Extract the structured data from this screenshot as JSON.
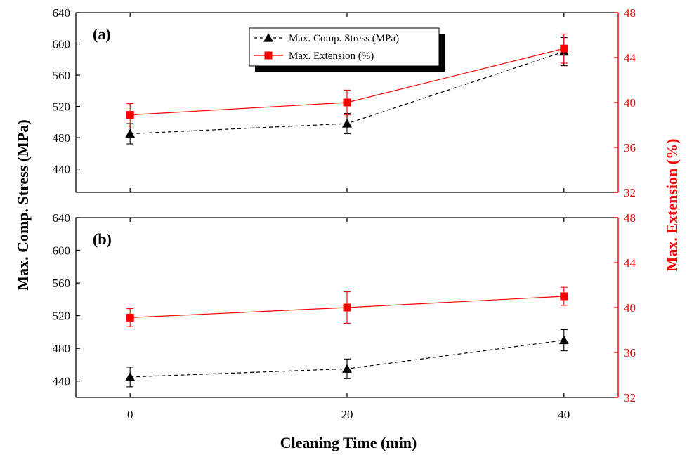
{
  "chart_data": {
    "type": "line",
    "xlabel": "Cleaning Time (min)",
    "ylabel_left": "Max. Comp. Stress (MPa)",
    "ylabel_right": "Max. Extension (%)",
    "x_ticks": [
      "0",
      "20",
      "40"
    ],
    "x_values": [
      0,
      20,
      40
    ],
    "xlim": [
      -5,
      45
    ],
    "legend": {
      "placement": "top-center of panel (a)",
      "entries": [
        {
          "label": "Max. Comp. Stress (MPa)",
          "marker": "triangle",
          "line": "dashed",
          "color": "#000000"
        },
        {
          "label": "Max. Extension (%)",
          "marker": "square",
          "line": "solid",
          "color": "#ff0000"
        }
      ]
    },
    "colors": {
      "stress": "#000000",
      "extension": "#ff0000"
    },
    "panels": [
      {
        "label": "(a)",
        "ylim_left": [
          410,
          640
        ],
        "yticks_left": [
          "440",
          "480",
          "520",
          "560",
          "600",
          "640"
        ],
        "ylim_right": [
          32,
          48
        ],
        "yticks_right": [
          "32",
          "36",
          "40",
          "44",
          "48"
        ],
        "series": [
          {
            "name": "Max. Comp. Stress (MPa)",
            "axis": "left",
            "x": [
              0,
              20,
              40
            ],
            "y": [
              485,
              498,
              590
            ],
            "err": [
              13,
              13,
              18
            ]
          },
          {
            "name": "Max. Extension (%)",
            "axis": "right",
            "x": [
              0,
              20,
              40
            ],
            "y": [
              38.9,
              40.0,
              44.8
            ],
            "err": [
              1.0,
              1.1,
              1.3
            ]
          }
        ]
      },
      {
        "label": "(b)",
        "ylim_left": [
          420,
          640
        ],
        "yticks_left": [
          "440",
          "480",
          "520",
          "560",
          "600",
          "640"
        ],
        "ylim_right": [
          32,
          48
        ],
        "yticks_right": [
          "32",
          "36",
          "40",
          "44",
          "48"
        ],
        "series": [
          {
            "name": "Max. Comp. Stress (MPa)",
            "axis": "left",
            "x": [
              0,
              20,
              40
            ],
            "y": [
              445,
              455,
              490
            ],
            "err": [
              12,
              12,
              13
            ]
          },
          {
            "name": "Max. Extension (%)",
            "axis": "right",
            "x": [
              0,
              20,
              40
            ],
            "y": [
              39.1,
              40.0,
              41.0
            ],
            "err": [
              0.8,
              1.4,
              0.8
            ]
          }
        ]
      }
    ]
  }
}
